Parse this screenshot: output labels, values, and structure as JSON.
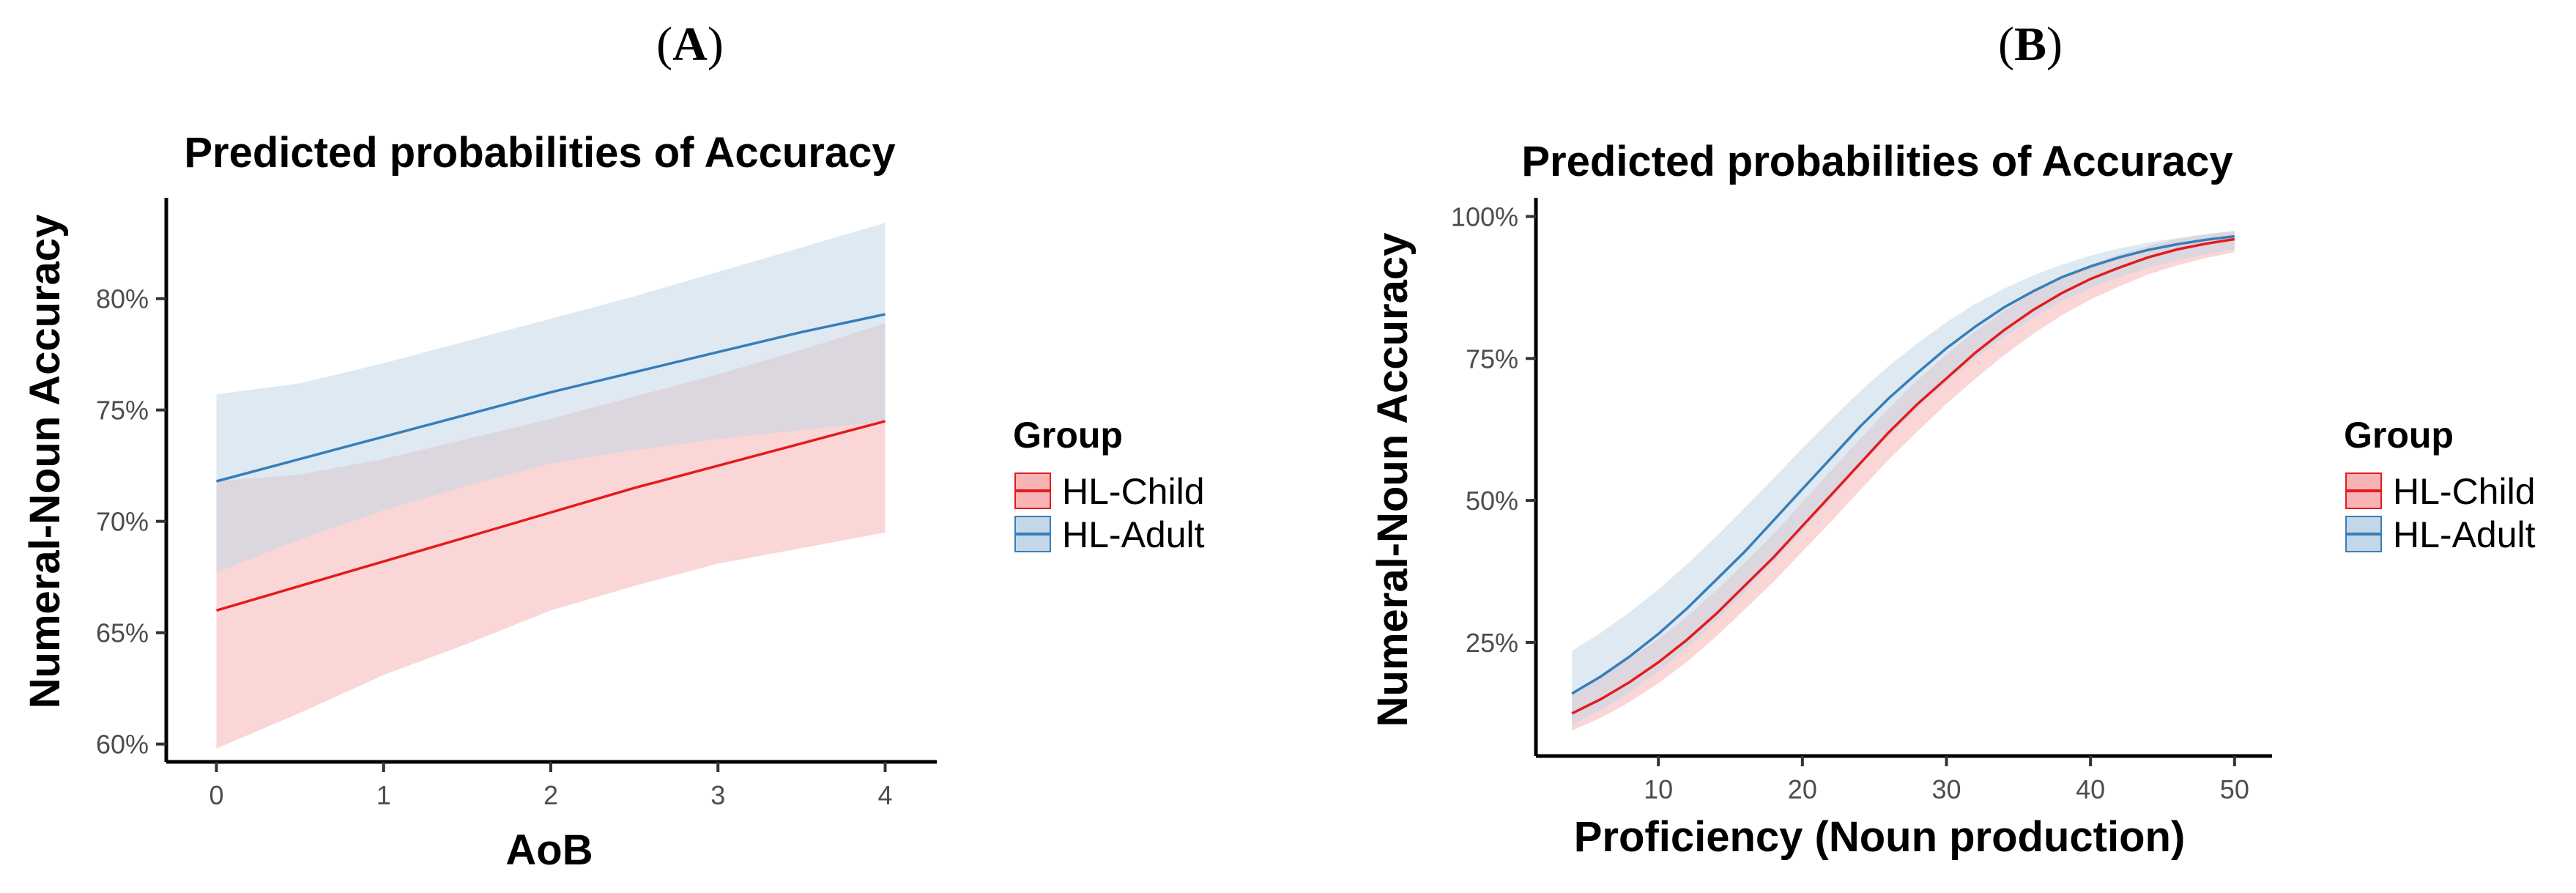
{
  "panels": [
    {
      "label": "A",
      "chart_data": {
        "type": "line",
        "title": "Predicted probabilities of Accuracy",
        "xlabel": "AoB",
        "ylabel": "Numeral-Noun Accuracy",
        "xlim": [
          -0.3,
          4.3
        ],
        "ylim": [
          0.592,
          0.842
        ],
        "xticks": [
          0,
          1,
          2,
          3,
          4
        ],
        "xtick_labels": [
          "0",
          "1",
          "2",
          "3",
          "4"
        ],
        "yticks": [
          0.6,
          0.65,
          0.7,
          0.75,
          0.8
        ],
        "ytick_labels": [
          "60%",
          "65%",
          "70%",
          "75%",
          "80%"
        ],
        "legend": {
          "title": "Group",
          "position": "right"
        },
        "series": [
          {
            "name": "HL-Child",
            "color": "#e41a1c",
            "fill": "#f8b4b4",
            "x": [
              0,
              0.5,
              1,
              1.5,
              2,
              2.5,
              3,
              3.5,
              4
            ],
            "y": [
              0.66,
              0.671,
              0.682,
              0.693,
              0.704,
              0.715,
              0.725,
              0.735,
              0.745
            ],
            "lower": [
              0.598,
              0.614,
              0.631,
              0.645,
              0.66,
              0.671,
              0.681,
              0.688,
              0.695
            ],
            "upper": [
              0.718,
              0.721,
              0.728,
              0.737,
              0.746,
              0.756,
              0.766,
              0.777,
              0.789
            ]
          },
          {
            "name": "HL-Adult",
            "color": "#377eb8",
            "fill": "#c3d7e8",
            "x": [
              0,
              0.5,
              1,
              1.5,
              2,
              2.5,
              3,
              3.5,
              4
            ],
            "y": [
              0.718,
              0.728,
              0.738,
              0.748,
              0.758,
              0.767,
              0.776,
              0.785,
              0.793
            ],
            "lower": [
              0.677,
              0.692,
              0.705,
              0.716,
              0.726,
              0.732,
              0.737,
              0.741,
              0.745
            ],
            "upper": [
              0.757,
              0.762,
              0.771,
              0.781,
              0.791,
              0.801,
              0.812,
              0.823,
              0.834
            ]
          }
        ]
      }
    },
    {
      "label": "B",
      "chart_data": {
        "type": "line",
        "title": "Predicted probabilities of Accuracy",
        "xlabel": "Proficiency (Noun production)",
        "ylabel": "Numeral-Noun Accuracy",
        "xlim": [
          1.5,
          52.5
        ],
        "ylim": [
          0.05,
          1.02
        ],
        "xticks": [
          10,
          20,
          30,
          40,
          50
        ],
        "xtick_labels": [
          "10",
          "20",
          "30",
          "40",
          "50"
        ],
        "yticks": [
          0.25,
          0.5,
          0.75,
          1.0
        ],
        "ytick_labels": [
          "25%",
          "50%",
          "75%",
          "100%"
        ],
        "legend": {
          "title": "Group",
          "position": "right"
        },
        "series": [
          {
            "name": "HL-Child",
            "color": "#e41a1c",
            "fill": "#f8b4b4",
            "x": [
              4,
              6,
              8,
              10,
              12,
              14,
              16,
              18,
              20,
              22,
              24,
              26,
              28,
              30,
              32,
              34,
              36,
              38,
              40,
              42,
              44,
              46,
              48,
              50
            ],
            "y": [
              0.125,
              0.15,
              0.18,
              0.215,
              0.255,
              0.3,
              0.35,
              0.4,
              0.455,
              0.51,
              0.565,
              0.62,
              0.67,
              0.715,
              0.76,
              0.8,
              0.835,
              0.865,
              0.89,
              0.91,
              0.928,
              0.942,
              0.952,
              0.96
            ],
            "lower": [
              0.095,
              0.117,
              0.145,
              0.178,
              0.216,
              0.26,
              0.308,
              0.357,
              0.41,
              0.463,
              0.518,
              0.572,
              0.622,
              0.67,
              0.714,
              0.756,
              0.793,
              0.826,
              0.854,
              0.877,
              0.898,
              0.914,
              0.927,
              0.937
            ],
            "upper": [
              0.163,
              0.19,
              0.221,
              0.256,
              0.296,
              0.341,
              0.39,
              0.441,
              0.497,
              0.553,
              0.608,
              0.662,
              0.712,
              0.757,
              0.798,
              0.834,
              0.866,
              0.893,
              0.915,
              0.933,
              0.948,
              0.96,
              0.968,
              0.974
            ]
          },
          {
            "name": "HL-Adult",
            "color": "#377eb8",
            "fill": "#c3d7e8",
            "x": [
              4,
              6,
              8,
              10,
              12,
              14,
              16,
              18,
              20,
              22,
              24,
              26,
              28,
              30,
              32,
              34,
              36,
              38,
              40,
              42,
              44,
              46,
              48,
              50
            ],
            "y": [
              0.16,
              0.19,
              0.225,
              0.265,
              0.31,
              0.36,
              0.41,
              0.465,
              0.52,
              0.575,
              0.63,
              0.68,
              0.725,
              0.768,
              0.806,
              0.84,
              0.868,
              0.893,
              0.912,
              0.928,
              0.941,
              0.951,
              0.959,
              0.965
            ],
            "lower": [
              0.105,
              0.131,
              0.162,
              0.199,
              0.241,
              0.288,
              0.338,
              0.391,
              0.446,
              0.503,
              0.56,
              0.613,
              0.662,
              0.708,
              0.75,
              0.788,
              0.821,
              0.851,
              0.874,
              0.893,
              0.91,
              0.923,
              0.934,
              0.942
            ],
            "upper": [
              0.235,
              0.267,
              0.303,
              0.343,
              0.388,
              0.436,
              0.487,
              0.539,
              0.592,
              0.643,
              0.692,
              0.737,
              0.777,
              0.814,
              0.846,
              0.873,
              0.896,
              0.915,
              0.931,
              0.944,
              0.954,
              0.962,
              0.969,
              0.975
            ]
          }
        ]
      }
    }
  ]
}
